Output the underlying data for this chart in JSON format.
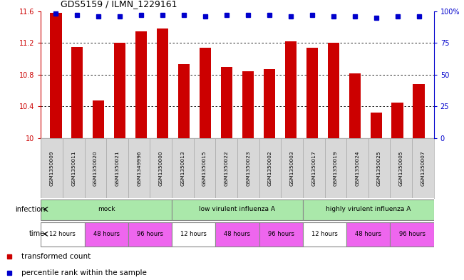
{
  "title": "GDS5159 / ILMN_1229161",
  "samples": [
    "GSM1350009",
    "GSM1350011",
    "GSM1350020",
    "GSM1350021",
    "GSM1349996",
    "GSM1350000",
    "GSM1350013",
    "GSM1350015",
    "GSM1350022",
    "GSM1350023",
    "GSM1350002",
    "GSM1350003",
    "GSM1350017",
    "GSM1350019",
    "GSM1350024",
    "GSM1350025",
    "GSM1350005",
    "GSM1350007"
  ],
  "bar_values": [
    11.58,
    11.15,
    10.47,
    11.2,
    11.35,
    11.38,
    10.93,
    11.14,
    10.9,
    10.84,
    10.87,
    11.22,
    11.14,
    11.2,
    10.82,
    10.32,
    10.45,
    10.68
  ],
  "percentile_values": [
    98,
    97,
    96,
    96,
    97,
    97,
    97,
    96,
    97,
    97,
    97,
    96,
    97,
    96,
    96,
    95,
    96,
    96
  ],
  "bar_color": "#CC0000",
  "percentile_color": "#0000CC",
  "ylim_left": [
    10.0,
    11.6
  ],
  "ylim_right": [
    0,
    100
  ],
  "yticks_left": [
    10.0,
    10.4,
    10.8,
    11.2,
    11.6
  ],
  "ytick_labels_left": [
    "10",
    "10.4",
    "10.8",
    "11.2",
    "11.6"
  ],
  "yticks_right": [
    0,
    25,
    50,
    75,
    100
  ],
  "ytick_labels_right": [
    "0",
    "25",
    "50",
    "75",
    "100%"
  ],
  "grid_yticks": [
    10.4,
    10.8,
    11.2
  ],
  "infection_groups": [
    {
      "label": "mock",
      "start": 0,
      "end": 6,
      "color": "#aae8aa"
    },
    {
      "label": "low virulent influenza A",
      "start": 6,
      "end": 12,
      "color": "#aae8aa"
    },
    {
      "label": "highly virulent influenza A",
      "start": 12,
      "end": 18,
      "color": "#aae8aa"
    }
  ],
  "time_groups": [
    {
      "label": "12 hours",
      "color": "#ffffff",
      "start": 0,
      "end": 2
    },
    {
      "label": "48 hours",
      "color": "#ee66ee",
      "start": 2,
      "end": 4
    },
    {
      "label": "96 hours",
      "color": "#ee66ee",
      "start": 4,
      "end": 6
    },
    {
      "label": "12 hours",
      "color": "#ffffff",
      "start": 6,
      "end": 8
    },
    {
      "label": "48 hours",
      "color": "#ee66ee",
      "start": 8,
      "end": 10
    },
    {
      "label": "96 hours",
      "color": "#ee66ee",
      "start": 10,
      "end": 12
    },
    {
      "label": "12 hours",
      "color": "#ffffff",
      "start": 12,
      "end": 14
    },
    {
      "label": "48 hours",
      "color": "#ee66ee",
      "start": 14,
      "end": 16
    },
    {
      "label": "96 hours",
      "color": "#ee66ee",
      "start": 16,
      "end": 18
    }
  ],
  "bg_color": "#ffffff",
  "left_axis_color": "#CC0000",
  "right_axis_color": "#0000CC",
  "sample_bg_color": "#d8d8d8",
  "bar_width": 0.55,
  "n_samples": 18
}
